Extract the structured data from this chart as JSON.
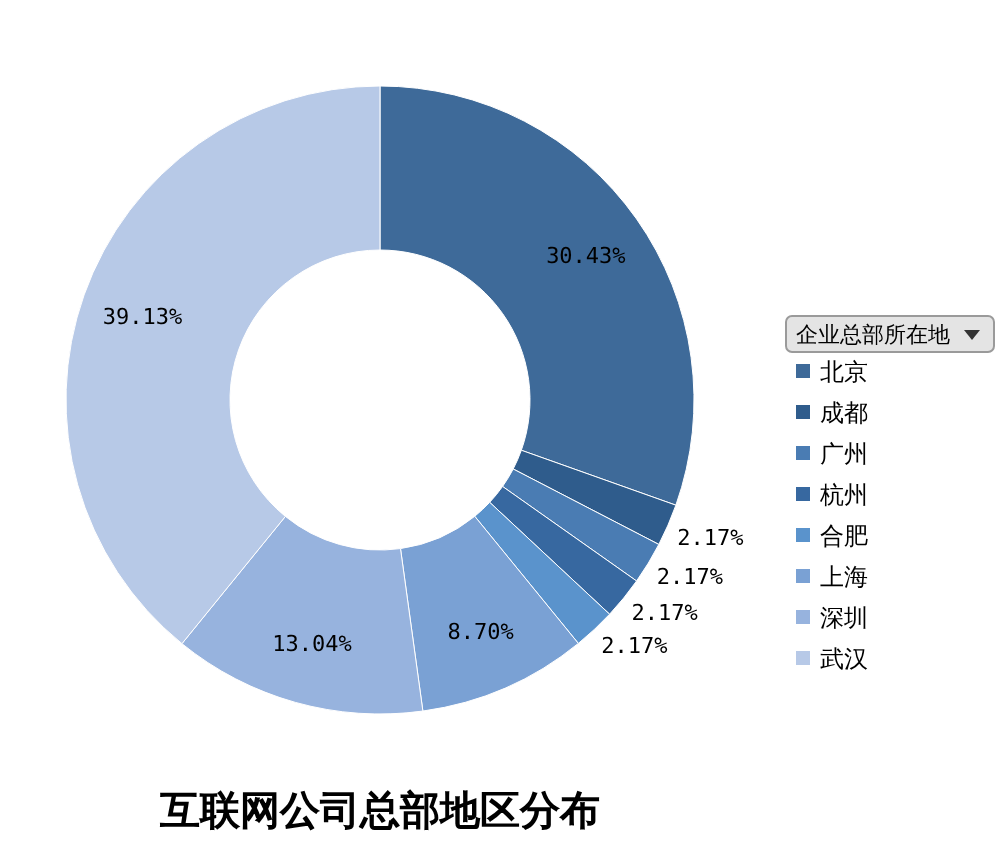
{
  "chart_data": {
    "type": "donut",
    "title": "互联网公司总部地区分布",
    "legend_title": "企业总部所在地",
    "legend": "right",
    "categories": [
      "北京",
      "成都",
      "广州",
      "杭州",
      "合肥",
      "上海",
      "深圳",
      "武汉"
    ],
    "values": [
      30.43,
      2.17,
      2.17,
      2.17,
      2.17,
      8.7,
      13.04,
      39.13
    ],
    "value_labels": [
      "30.43%",
      "2.17%",
      "2.17%",
      "2.17%",
      "2.17%",
      "8.70%",
      "13.04%",
      "39.13%"
    ],
    "colors": [
      "#3e6a99",
      "#2f5c8c",
      "#4a7cb3",
      "#3768a0",
      "#5a93cc",
      "#7aa1d4",
      "#97b3de",
      "#b7c9e7"
    ]
  }
}
